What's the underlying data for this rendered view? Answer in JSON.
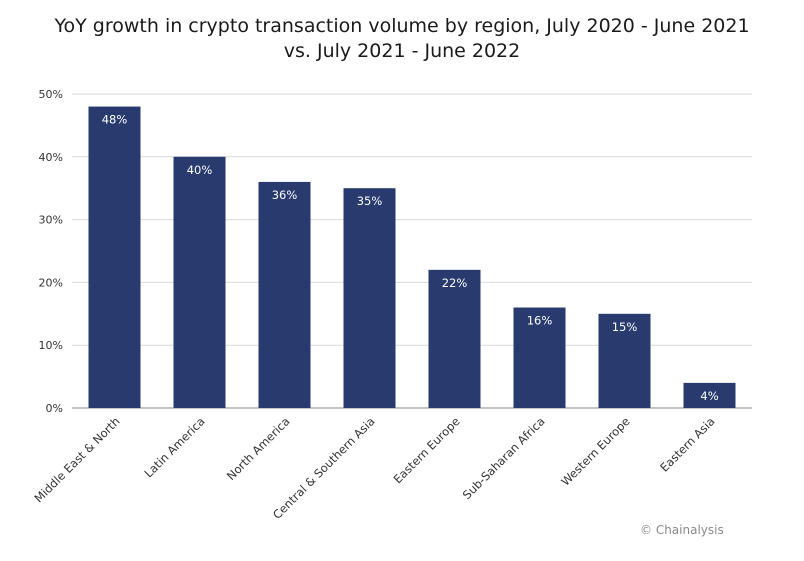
{
  "chart_data": {
    "type": "bar",
    "title_line1": "YoY growth in crypto transaction volume by region, July 2020 - June 2021",
    "title_line2": "vs. July 2021 - June 2022",
    "categories": [
      "Middle East & North",
      "Latin America",
      "North America",
      "Central & Southern Asia",
      "Eastern Europe",
      "Sub-Saharan Africa",
      "Western Europe",
      "Eastern Asia"
    ],
    "values": [
      48,
      40,
      36,
      35,
      22,
      16,
      15,
      4
    ],
    "value_labels": [
      "48%",
      "40%",
      "36%",
      "35%",
      "22%",
      "16%",
      "15%",
      "4%"
    ],
    "ylim": [
      0,
      50
    ],
    "yticks": [
      "0%",
      "10%",
      "20%",
      "30%",
      "40%",
      "50%"
    ],
    "grid": true,
    "bar_color": "#283a6e"
  },
  "footer": {
    "copyright": "© Chainalysis"
  }
}
